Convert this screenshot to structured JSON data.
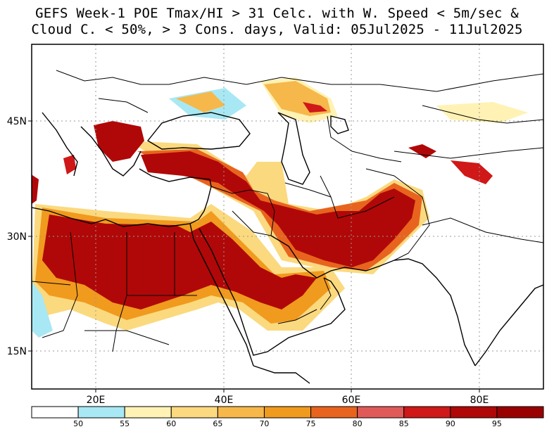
{
  "title": {
    "line1": "GEFS Week-1 POE Tmax/HI > 31 Celc. with W. Speed < 5m/sec &",
    "line2": "Cloud C. < 50%, > 3 Cons. days, Valid: 05Jul2025 - 11Jul2025"
  },
  "axes": {
    "lon_labels": [
      "20E",
      "40E",
      "60E",
      "80E"
    ],
    "lat_labels": [
      "45N",
      "30N",
      "15N"
    ]
  },
  "colorbar": {
    "labels": [
      "50",
      "55",
      "60",
      "65",
      "70",
      "75",
      "80",
      "85",
      "90",
      "95"
    ],
    "colors": [
      "#ffffff",
      "#a8e8f4",
      "#fff2b4",
      "#fbd97e",
      "#f6b84a",
      "#f09a1e",
      "#e8641e",
      "#e05a5a",
      "#d01818",
      "#b00808",
      "#990000"
    ]
  },
  "map": {
    "land_fill": "#ffffff",
    "border_color": "#000000",
    "grid_color": "#9a9a9a",
    "probability_palette": {
      "p55": "#a8e8f4",
      "p60": "#fff2b4",
      "p65": "#fbd97e",
      "p70": "#f6b84a",
      "p75": "#f09a1e",
      "p80": "#e8641e",
      "p85": "#e05a5a",
      "p90": "#d01818",
      "p95": "#990000"
    }
  }
}
